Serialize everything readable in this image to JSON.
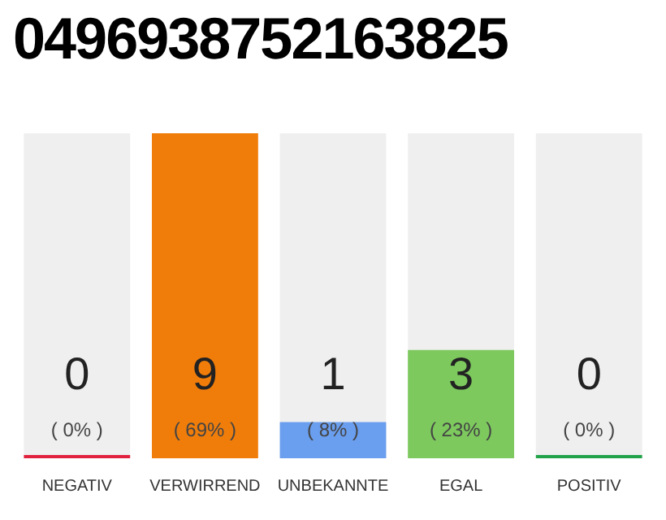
{
  "chart_data": {
    "type": "bar",
    "title": "0496938752163825",
    "categories": [
      "NEGATIV",
      "VERWIRREND",
      "UNBEKANNTE",
      "EGAL",
      "POSITIV"
    ],
    "values": [
      0,
      9,
      1,
      3,
      0
    ],
    "colors": [
      "#e0223f",
      "#f07d0a",
      "#6a9eee",
      "#7dc95e",
      "#22a34a"
    ],
    "value_labels": [
      "0\n( 0% )",
      "9\n( 69% )",
      "1\n( 8% )",
      "3\n( 23% )",
      "0\n( 0% )"
    ],
    "grid": false,
    "legend": false
  }
}
